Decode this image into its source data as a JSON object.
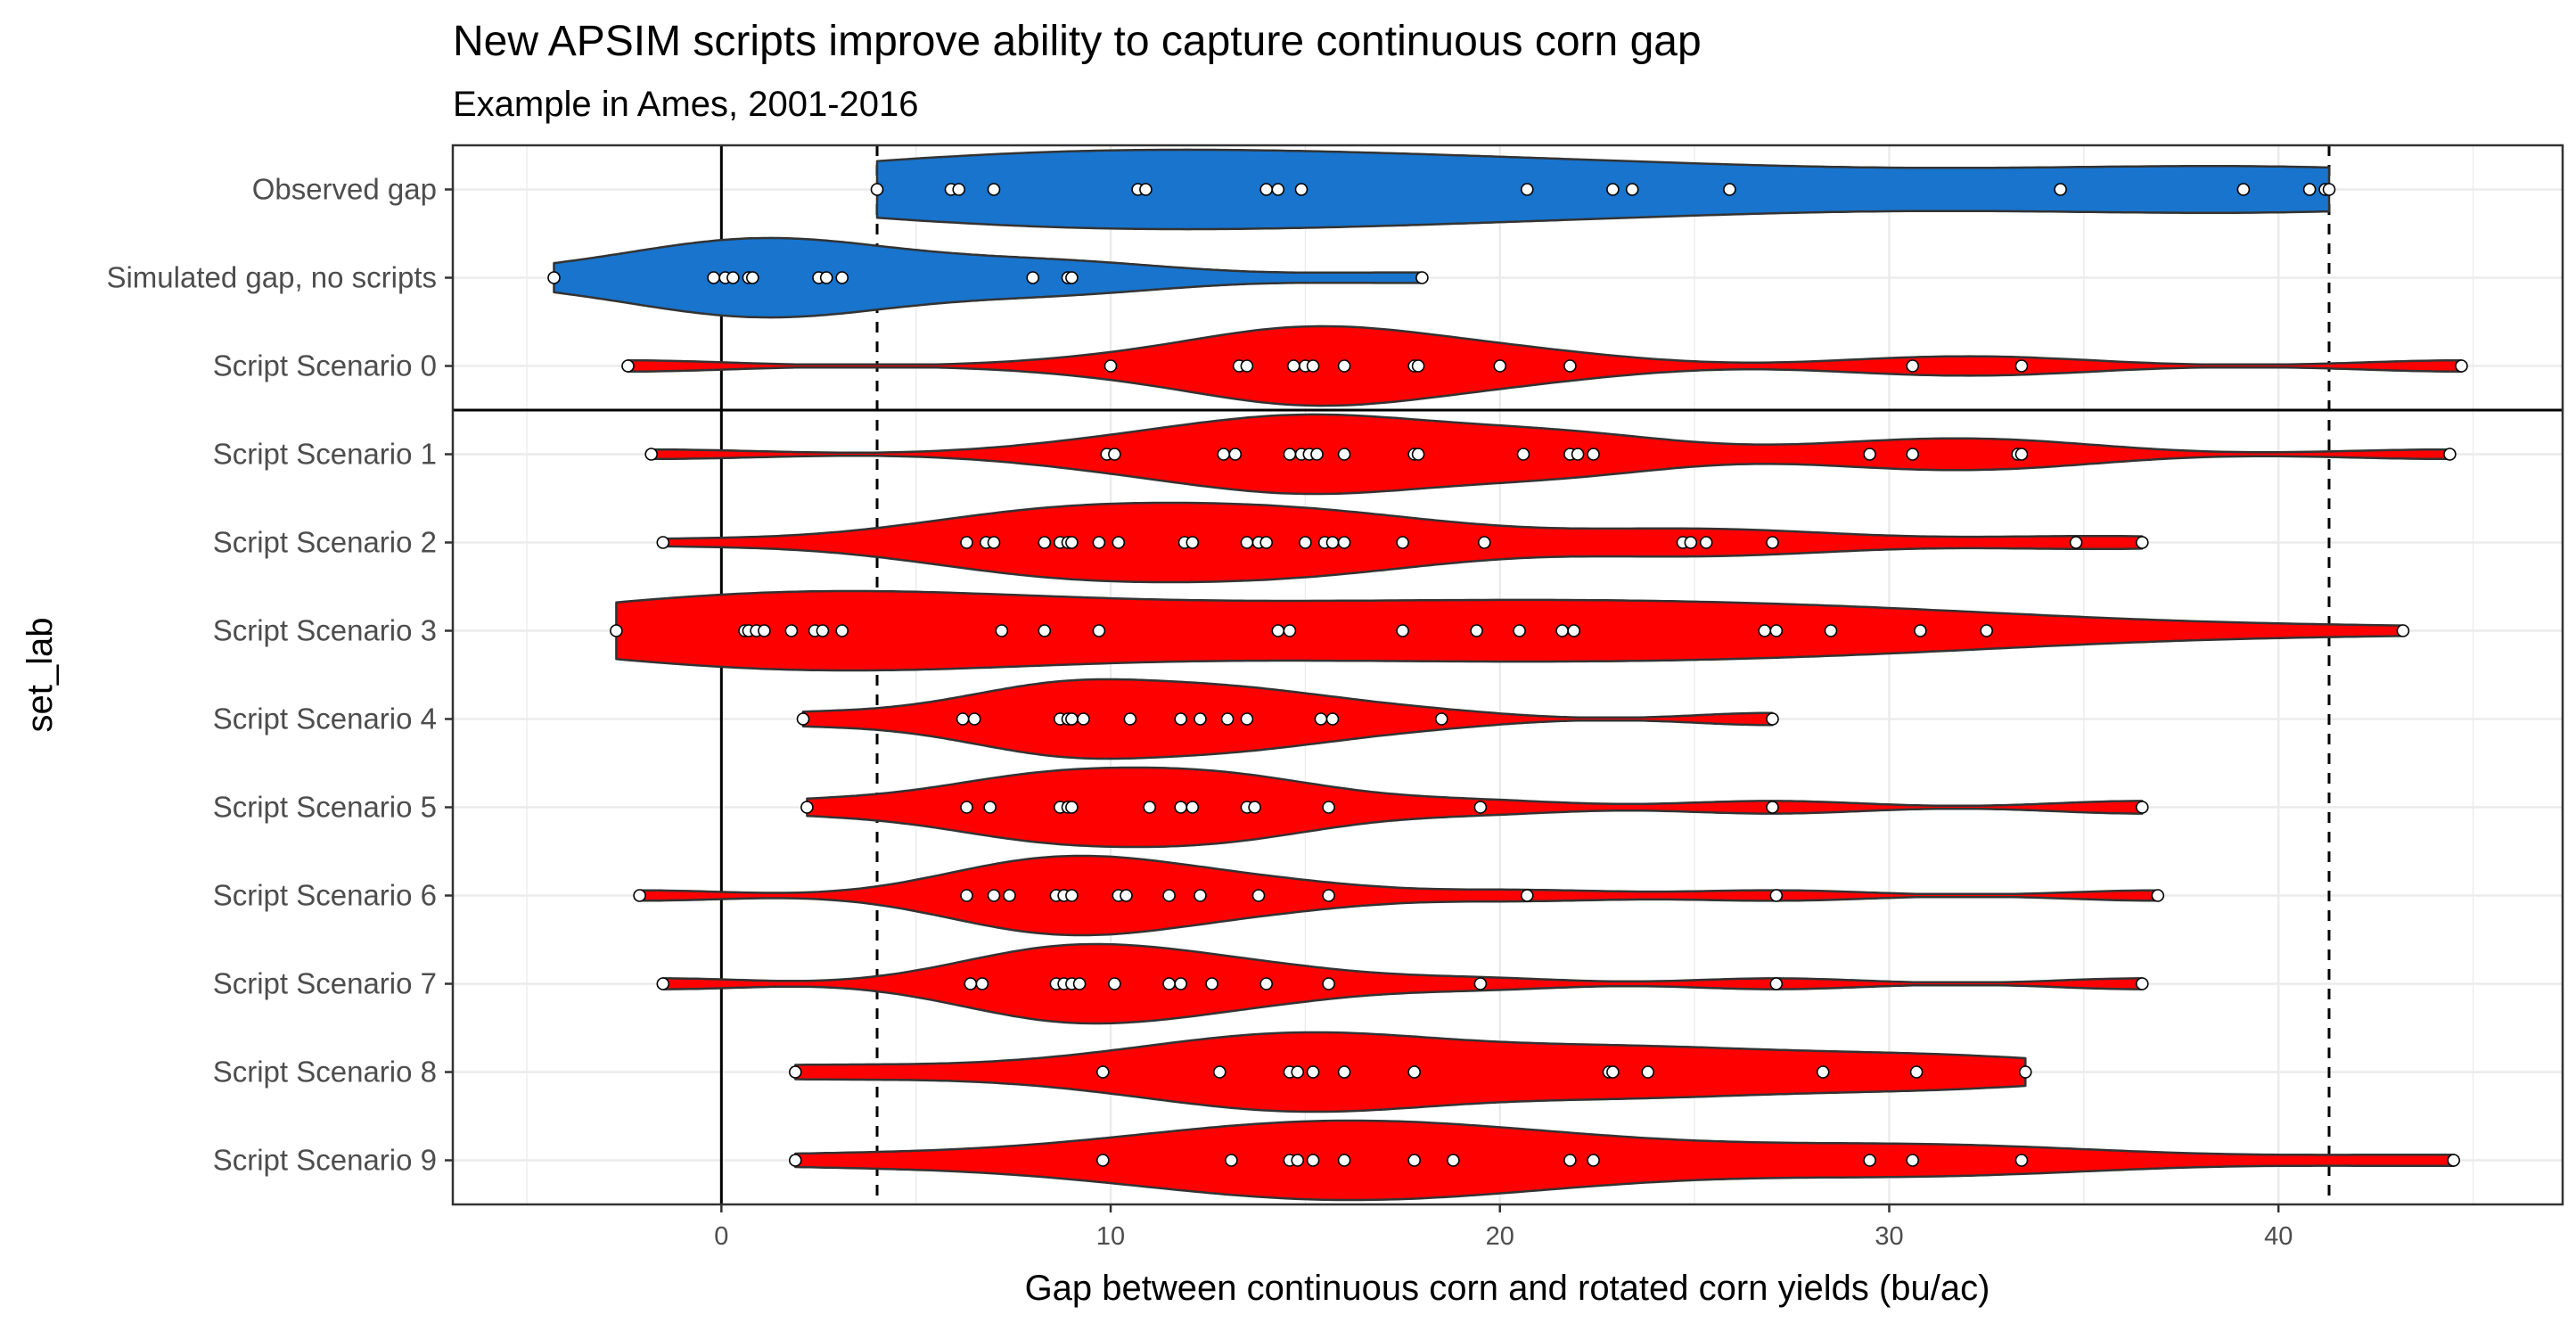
{
  "chart_data": {
    "type": "violin",
    "title": "New APSIM scripts improve ability to capture continuous corn gap",
    "subtitle": "Example in Ames, 2001-2016",
    "xlabel": "Gap between continuous corn and rotated corn yields (bu/ac)",
    "ylabel": "set_lab",
    "xlim": [
      -6.9,
      47.3
    ],
    "xticks": [
      0,
      10,
      20,
      30,
      40
    ],
    "grid": true,
    "reference_lines": {
      "solid_vertical_x": 0,
      "dashed_vertical_x": [
        4.0,
        41.3
      ]
    },
    "separator_between": [
      "Script Scenario  0",
      "Script Scenario  1"
    ],
    "colors": {
      "observed": "#1874CD",
      "scenario": "#FF0000",
      "outline": "#333333",
      "point_fill": "#FFFFFF"
    },
    "series": [
      {
        "label": "Observed gap",
        "color": "#1874CD",
        "values": [
          4.0,
          5.9,
          6.1,
          7.0,
          10.7,
          10.9,
          14.0,
          14.3,
          14.9,
          20.7,
          22.9,
          23.4,
          25.9,
          34.4,
          39.1,
          40.8,
          41.2,
          41.3
        ]
      },
      {
        "label": "Simulated gap, no scripts",
        "color": "#1874CD",
        "values": [
          -4.3,
          -0.2,
          0.1,
          0.3,
          0.7,
          0.8,
          2.5,
          2.7,
          3.1,
          8.0,
          8.9,
          9.0,
          18.0
        ]
      },
      {
        "label": "Script Scenario  0",
        "color": "#FF0000",
        "values": [
          -2.4,
          10.0,
          13.3,
          13.5,
          14.7,
          15.0,
          15.2,
          16.0,
          17.8,
          17.9,
          20.0,
          21.8,
          30.6,
          33.4,
          44.7
        ]
      },
      {
        "label": "Script Scenario  1",
        "color": "#FF0000",
        "values": [
          -1.8,
          9.9,
          10.1,
          12.9,
          13.2,
          14.6,
          14.9,
          15.1,
          15.3,
          16.0,
          17.8,
          17.9,
          20.6,
          21.8,
          22.0,
          22.4,
          29.5,
          30.6,
          33.3,
          33.4,
          44.4
        ]
      },
      {
        "label": "Script Scenario  2",
        "color": "#FF0000",
        "values": [
          -1.5,
          6.3,
          6.8,
          7.0,
          8.3,
          8.7,
          8.9,
          9.0,
          9.7,
          10.2,
          11.9,
          12.1,
          13.5,
          13.8,
          14.0,
          15.0,
          15.5,
          15.7,
          16.0,
          17.5,
          19.6,
          24.7,
          24.9,
          25.3,
          27.0,
          34.8,
          36.5
        ]
      },
      {
        "label": "Script Scenario  3",
        "color": "#FF0000",
        "values": [
          -2.7,
          0.6,
          0.7,
          0.9,
          1.1,
          1.8,
          2.4,
          2.6,
          3.1,
          7.2,
          8.3,
          9.7,
          14.3,
          14.6,
          17.5,
          19.4,
          20.5,
          21.6,
          21.9,
          26.8,
          27.1,
          28.5,
          30.8,
          32.5,
          43.2
        ]
      },
      {
        "label": "Script Scenario  4",
        "color": "#FF0000",
        "values": [
          2.1,
          6.2,
          6.5,
          8.7,
          8.9,
          9.0,
          9.3,
          10.5,
          11.8,
          12.3,
          13.0,
          13.5,
          15.4,
          15.7,
          18.5,
          27.0
        ]
      },
      {
        "label": "Script Scenario  5",
        "color": "#FF0000",
        "values": [
          2.2,
          6.3,
          6.9,
          8.7,
          8.9,
          9.0,
          11.0,
          11.8,
          12.1,
          13.5,
          13.7,
          15.6,
          19.5,
          27.0,
          36.5
        ]
      },
      {
        "label": "Script Scenario  6",
        "color": "#FF0000",
        "values": [
          -2.1,
          6.3,
          7.0,
          7.4,
          8.6,
          8.8,
          9.0,
          10.2,
          10.4,
          11.5,
          12.3,
          13.8,
          15.6,
          20.7,
          27.1,
          36.9
        ]
      },
      {
        "label": "Script Scenario  7",
        "color": "#FF0000",
        "values": [
          -1.5,
          6.4,
          6.7,
          8.6,
          8.8,
          9.0,
          9.2,
          10.1,
          11.5,
          11.8,
          12.6,
          14.0,
          15.6,
          19.5,
          27.1,
          36.5
        ]
      },
      {
        "label": "Script Scenario  8",
        "color": "#FF0000",
        "values": [
          1.9,
          9.8,
          12.8,
          14.6,
          14.8,
          15.2,
          16.0,
          17.8,
          22.8,
          22.9,
          23.8,
          28.3,
          30.7,
          33.5
        ]
      },
      {
        "label": "Script Scenario  9",
        "color": "#FF0000",
        "values": [
          1.9,
          9.8,
          13.1,
          14.6,
          14.8,
          15.2,
          16.0,
          17.8,
          18.8,
          21.8,
          22.4,
          29.5,
          30.6,
          33.4,
          44.5
        ]
      }
    ]
  }
}
